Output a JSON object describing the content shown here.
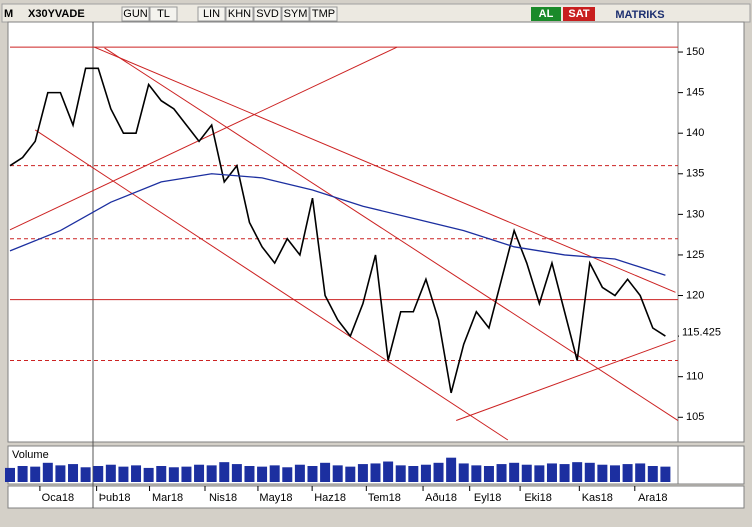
{
  "toolbar": {
    "logo": "M",
    "symbol": "X30YVADE",
    "buttons": [
      "GUN",
      "TL",
      "LIN",
      "KHN",
      "SVD",
      "SYM",
      "TMP"
    ],
    "buy": "AL",
    "sell": "SAT",
    "brand": "MATRIKS"
  },
  "chart_data": {
    "type": "line",
    "x": [
      0,
      1,
      2,
      3,
      4,
      5,
      6,
      7,
      8,
      9,
      10,
      11,
      12,
      13,
      14,
      15,
      16,
      17,
      18,
      19,
      20,
      21,
      22,
      23,
      24,
      25,
      26,
      27,
      28,
      29,
      30,
      31,
      32,
      33,
      34,
      35,
      36,
      37,
      38,
      39,
      40,
      41,
      42,
      43,
      44,
      45,
      46,
      47,
      48,
      49,
      50,
      51,
      52
    ],
    "xlim": [
      0,
      53
    ],
    "xticks": [
      {
        "value": 3.8,
        "label": "Oca18"
      },
      {
        "value": 8.3,
        "label": "Þub18"
      },
      {
        "value": 12.5,
        "label": "Mar18"
      },
      {
        "value": 16.9,
        "label": "Nis18"
      },
      {
        "value": 21.1,
        "label": "May18"
      },
      {
        "value": 25.4,
        "label": "Haz18"
      },
      {
        "value": 29.7,
        "label": "Tem18"
      },
      {
        "value": 34.2,
        "label": "Aðu18"
      },
      {
        "value": 37.9,
        "label": "Eyl18"
      },
      {
        "value": 41.9,
        "label": "Eki18"
      },
      {
        "value": 46.6,
        "label": "Kas18"
      },
      {
        "value": 51,
        "label": "Ara18"
      }
    ],
    "ylim": [
      102.2,
      153.7
    ],
    "yticks": [
      105,
      110,
      115,
      120,
      125,
      130,
      135,
      140,
      145,
      150
    ],
    "series": [
      {
        "color": "#000000",
        "values": [
          136,
          137,
          139,
          145,
          145,
          141,
          148,
          148,
          143,
          140,
          140,
          146,
          144,
          143,
          141,
          139,
          141,
          134,
          136,
          129,
          126,
          124,
          127,
          125,
          132,
          120,
          117,
          115,
          119,
          125,
          112,
          118,
          118,
          122,
          117,
          108,
          114,
          118,
          116,
          122,
          128,
          124,
          119,
          124,
          118,
          112,
          124,
          121,
          120,
          122,
          120,
          116,
          115
        ]
      },
      {
        "color": "#1c2fa0",
        "x": [
          0,
          4,
          8,
          12,
          16,
          20,
          24,
          28,
          32,
          36,
          40,
          44,
          48,
          52
        ],
        "values": [
          125.5,
          128,
          131.5,
          134,
          135,
          134.5,
          133,
          131,
          129.5,
          128,
          126,
          125,
          124.5,
          122.5
        ]
      }
    ],
    "last_price": 115.425,
    "levels": [
      {
        "value": 150.6,
        "dashed": false
      },
      {
        "value": 136,
        "dashed": true
      },
      {
        "value": 127,
        "dashed": true
      },
      {
        "value": 119.5,
        "dashed": false
      },
      {
        "value": 112,
        "dashed": true
      }
    ],
    "trendlines": [
      {
        "x": [
          0,
          30.7
        ],
        "y": [
          128.1,
          150.6
        ]
      },
      {
        "x": [
          6.7,
          52.8
        ],
        "y": [
          150.6,
          120.4
        ]
      },
      {
        "x": [
          2,
          39.5
        ],
        "y": [
          140.4,
          102.2
        ]
      },
      {
        "x": [
          7.5,
          53
        ],
        "y": [
          150.5,
          104.6
        ]
      },
      {
        "x": [
          35.4,
          52.8
        ],
        "y": [
          104.6,
          114.5
        ]
      }
    ],
    "line_color": "#cc2222",
    "volume": {
      "name": "Volume",
      "color": "#1c2fa0",
      "ylim": [
        0,
        500000
      ],
      "values": [
        220000,
        250000,
        240000,
        300000,
        260000,
        280000,
        230000,
        250000,
        270000,
        240000,
        260000,
        220000,
        250000,
        230000,
        240000,
        270000,
        260000,
        310000,
        280000,
        250000,
        240000,
        260000,
        230000,
        270000,
        250000,
        300000,
        260000,
        240000,
        280000,
        290000,
        320000,
        260000,
        250000,
        270000,
        300000,
        380000,
        290000,
        260000,
        250000,
        280000,
        300000,
        270000,
        260000,
        290000,
        280000,
        310000,
        300000,
        270000,
        260000,
        280000,
        290000,
        250000,
        240000
      ]
    }
  }
}
